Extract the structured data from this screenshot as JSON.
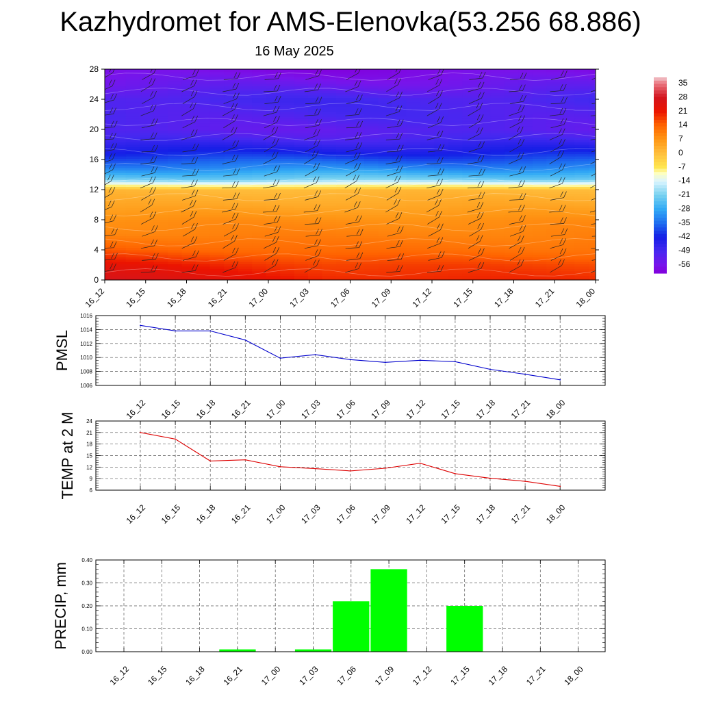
{
  "header": {
    "title": "Kazhydromet for AMS-Elenovka(53.256 68.886)",
    "subtitle": "16 May 2025"
  },
  "chart_data": [
    {
      "type": "heatmap",
      "name": "upper-air temperature and wind cross-section",
      "x": [
        "16_12",
        "16_15",
        "16_18",
        "16_21",
        "17_00",
        "17_03",
        "17_06",
        "17_09",
        "17_12",
        "17_15",
        "17_18",
        "17_21",
        "18_00"
      ],
      "y_ticks": [
        0,
        4,
        8,
        12,
        16,
        20,
        24,
        28
      ],
      "ylim": [
        0,
        28
      ],
      "colorbar": {
        "labels": [
          35,
          28,
          21,
          14,
          7,
          0,
          -7,
          -14,
          -21,
          -28,
          -35,
          -42,
          -49,
          -56
        ],
        "range": [
          -60,
          38
        ]
      },
      "profile": {
        "levels": [
          0,
          2,
          4,
          6,
          8,
          10,
          12,
          12.7,
          13.5,
          15,
          17,
          19,
          20,
          22,
          24,
          26,
          28
        ],
        "temps": [
          21,
          18,
          13,
          10,
          8,
          4,
          1,
          -10,
          -22,
          -32,
          -42,
          -50,
          -52,
          -50,
          -49,
          -54,
          -58
        ]
      },
      "wind_barbs": true
    },
    {
      "type": "line",
      "ylabel": "PMSL",
      "x": [
        "16_12",
        "16_15",
        "16_18",
        "16_21",
        "17_00",
        "17_03",
        "17_06",
        "17_09",
        "17_12",
        "17_15",
        "17_18",
        "17_21",
        "18_00"
      ],
      "values": [
        1014.6,
        1013.8,
        1013.8,
        1012.5,
        1009.9,
        1010.4,
        1009.7,
        1009.3,
        1009.6,
        1009.4,
        1008.3,
        1007.6,
        1006.8
      ],
      "ylim": [
        1006,
        1016
      ],
      "yticks": [
        "1006",
        "1008",
        "1010",
        "1012",
        "1014",
        "1016"
      ],
      "color": "#0000cc",
      "grid": true
    },
    {
      "type": "line",
      "ylabel": "TEMP at 2 M",
      "x": [
        "16_12",
        "16_15",
        "16_18",
        "16_21",
        "17_00",
        "17_03",
        "17_06",
        "17_09",
        "17_12",
        "17_15",
        "17_18",
        "17_21",
        "18_00"
      ],
      "values": [
        21.0,
        19.3,
        13.6,
        13.9,
        12.1,
        11.6,
        11.0,
        11.7,
        13.0,
        10.3,
        9.1,
        8.3,
        7.0
      ],
      "ylim": [
        6,
        24
      ],
      "yticks": [
        "6",
        "9",
        "12",
        "15",
        "18",
        "21",
        "24"
      ],
      "color": "#dd0000",
      "grid": true
    },
    {
      "type": "bar",
      "ylabel": "PRECIP, mm",
      "categories": [
        "16_12",
        "16_15",
        "16_18",
        "16_21",
        "17_00",
        "17_03",
        "17_06",
        "17_09",
        "17_12",
        "17_15",
        "17_18",
        "17_21",
        "18_00"
      ],
      "values": [
        0,
        0,
        0,
        0.01,
        0,
        0.01,
        0.22,
        0.36,
        0,
        0.2,
        0,
        0,
        0
      ],
      "ylim": [
        0,
        0.4
      ],
      "yticks": [
        "0.00",
        "0.10",
        "0.20",
        "0.30",
        "0.40"
      ],
      "color": "#00ff00",
      "grid": true
    }
  ]
}
